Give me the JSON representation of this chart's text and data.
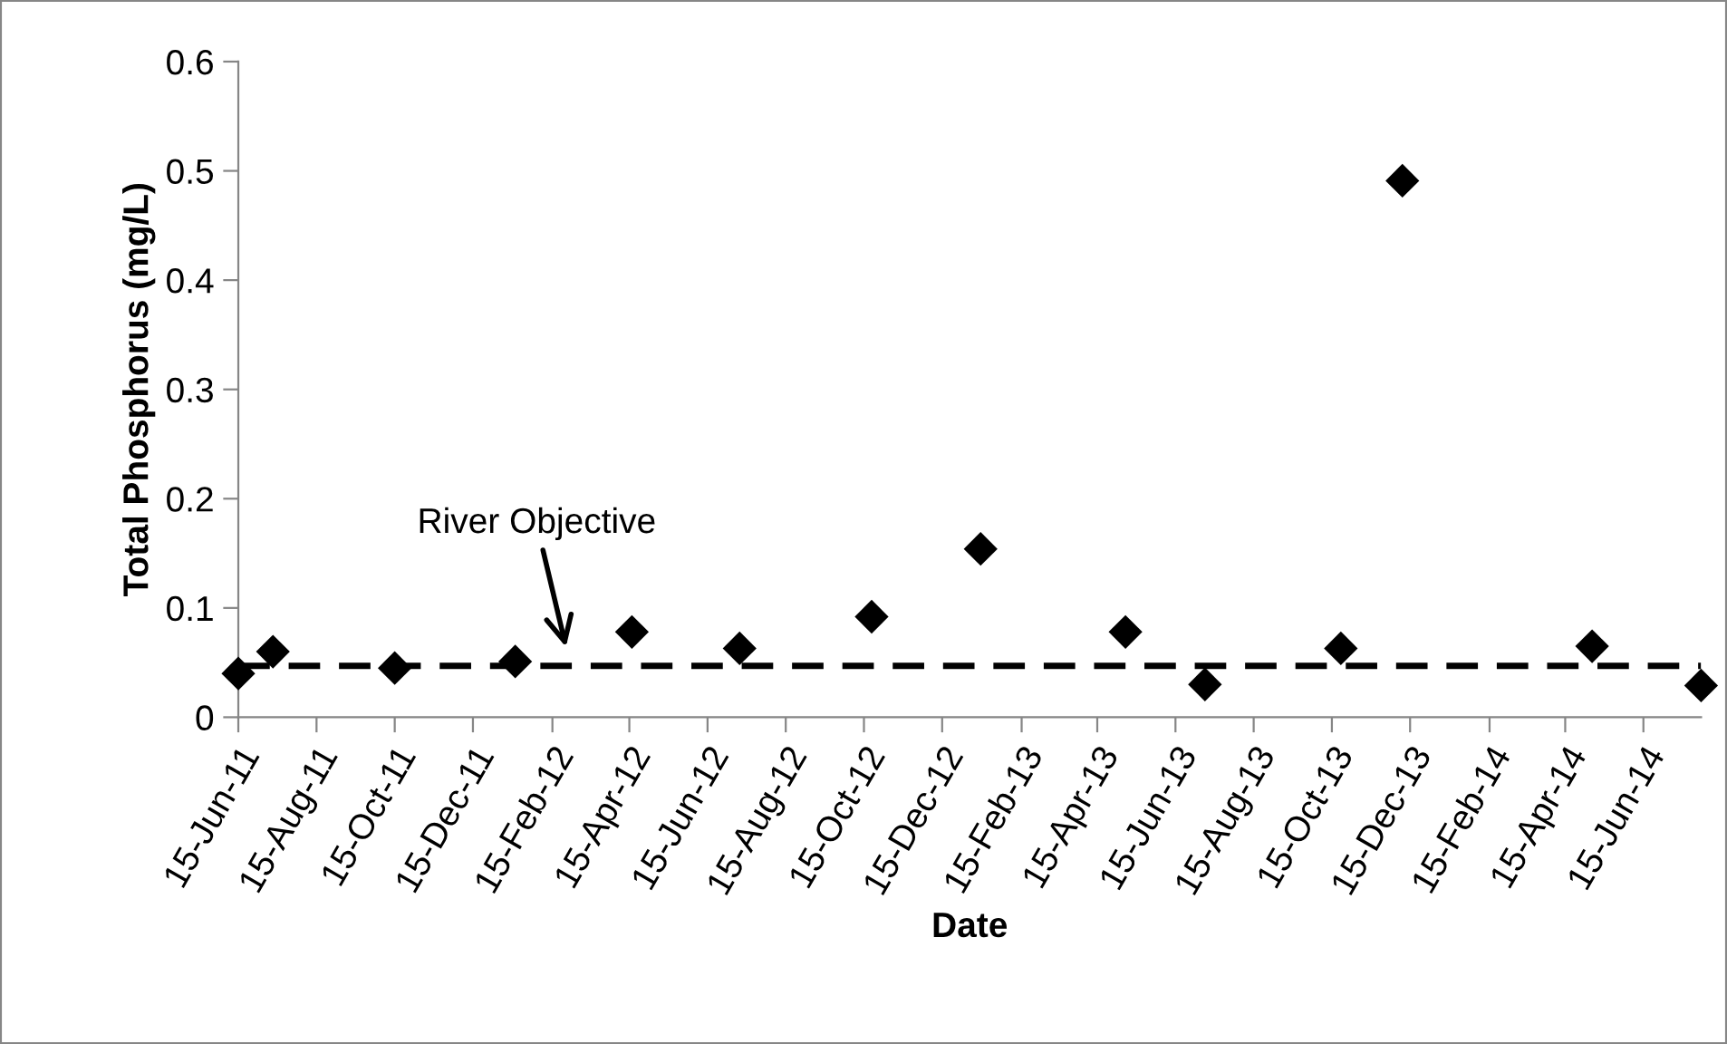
{
  "chart_data": {
    "type": "scatter",
    "xlabel": "Date",
    "ylabel": "Total Phosphorus (mg/L)",
    "x": [
      "2011-06-15",
      "2011-07-12",
      "2011-10-15",
      "2012-01-17",
      "2012-04-17",
      "2012-07-10",
      "2012-10-21",
      "2013-01-14",
      "2013-05-07",
      "2013-07-08",
      "2013-10-22",
      "2013-12-09",
      "2014-05-06",
      "2014-07-30"
    ],
    "series": [
      {
        "color": "#000000",
        "values": [
          0.04,
          0.06,
          0.045,
          0.051,
          0.078,
          0.063,
          0.092,
          0.154,
          0.078,
          0.03,
          0.063,
          0.491,
          0.065,
          0.029
        ]
      }
    ],
    "marker": "diamond",
    "ylim": [
      0,
      0.6
    ],
    "yticks": [
      0,
      0.1,
      0.2,
      0.3,
      0.4,
      0.5,
      0.6
    ],
    "xlim": [
      "2011-06-15",
      "2014-07-30"
    ],
    "xticks": [
      {
        "value": "2011-06-15",
        "label": "15-Jun-11"
      },
      {
        "value": "2011-08-15",
        "label": "15-Aug-11"
      },
      {
        "value": "2011-10-15",
        "label": "15-Oct-11"
      },
      {
        "value": "2011-12-15",
        "label": "15-Dec-11"
      },
      {
        "value": "2012-02-15",
        "label": "15-Feb-12"
      },
      {
        "value": "2012-04-15",
        "label": "15-Apr-12"
      },
      {
        "value": "2012-06-15",
        "label": "15-Jun-12"
      },
      {
        "value": "2012-08-15",
        "label": "15-Aug-12"
      },
      {
        "value": "2012-10-15",
        "label": "15-Oct-12"
      },
      {
        "value": "2012-12-15",
        "label": "15-Dec-12"
      },
      {
        "value": "2013-02-15",
        "label": "15-Feb-13"
      },
      {
        "value": "2013-04-15",
        "label": "15-Apr-13"
      },
      {
        "value": "2013-06-15",
        "label": "15-Jun-13"
      },
      {
        "value": "2013-08-15",
        "label": "15-Aug-13"
      },
      {
        "value": "2013-10-15",
        "label": "15-Oct-13"
      },
      {
        "value": "2013-12-15",
        "label": "15-Dec-13"
      },
      {
        "value": "2014-02-15",
        "label": "15-Feb-14"
      },
      {
        "value": "2014-04-15",
        "label": "15-Apr-14"
      },
      {
        "value": "2014-06-15",
        "label": "15-Jun-14"
      }
    ],
    "ref_lines": [
      {
        "axis": "y",
        "value": 0.047,
        "color": "#000000",
        "line_style": "dashed"
      }
    ],
    "annotations": [
      "River Objective"
    ],
    "grid": false,
    "legend": false
  }
}
